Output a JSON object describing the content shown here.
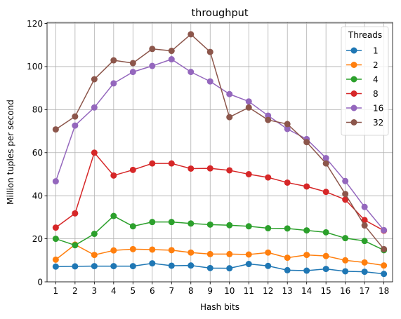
{
  "chart_data": {
    "type": "line",
    "title": "throughput",
    "xlabel": "Hash bits",
    "ylabel": "Million tuples per second",
    "x": [
      1,
      2,
      3,
      4,
      5,
      6,
      7,
      8,
      9,
      10,
      11,
      12,
      13,
      14,
      15,
      16,
      17,
      18
    ],
    "xlim": [
      0.55,
      18.45
    ],
    "ylim": [
      0,
      120.5
    ],
    "yticks": [
      0,
      20,
      40,
      60,
      80,
      100,
      120
    ],
    "grid": true,
    "marker": "circle",
    "legend": {
      "title": "Threads",
      "placement": "top-right"
    },
    "series": [
      {
        "name": "1",
        "color": "#1f77b4",
        "values": [
          7.1,
          7.2,
          7.3,
          7.3,
          7.3,
          8.6,
          7.5,
          7.6,
          6.4,
          6.3,
          8.3,
          7.4,
          5.4,
          5.2,
          6.0,
          4.9,
          4.7,
          3.7
        ]
      },
      {
        "name": "2",
        "color": "#ff7f0e",
        "values": [
          10.3,
          17.3,
          12.5,
          14.6,
          15.2,
          15.0,
          14.7,
          13.6,
          12.9,
          12.9,
          12.7,
          13.6,
          11.2,
          12.5,
          12.0,
          10.0,
          9.0,
          7.6
        ]
      },
      {
        "name": "4",
        "color": "#2ca02c",
        "values": [
          20.0,
          17.0,
          22.3,
          30.6,
          25.8,
          27.8,
          27.8,
          27.1,
          26.6,
          26.3,
          25.8,
          24.9,
          24.8,
          23.9,
          23.0,
          20.3,
          19.0,
          14.7
        ]
      },
      {
        "name": "8",
        "color": "#d62728",
        "values": [
          25.2,
          31.8,
          60.0,
          49.4,
          52.0,
          55.0,
          55.0,
          52.6,
          52.7,
          51.8,
          50.0,
          48.5,
          46.1,
          44.3,
          41.8,
          38.2,
          28.7,
          23.8
        ]
      },
      {
        "name": "16",
        "color": "#9467bd",
        "values": [
          46.7,
          72.6,
          81.0,
          92.2,
          97.5,
          100.3,
          103.4,
          97.5,
          93.1,
          87.2,
          83.8,
          77.2,
          71.0,
          66.3,
          57.5,
          46.8,
          34.8,
          24.0
        ]
      },
      {
        "name": "32",
        "color": "#8c564b",
        "values": [
          70.8,
          76.8,
          94.1,
          102.9,
          101.6,
          108.2,
          107.3,
          115.0,
          106.8,
          76.5,
          81.0,
          75.2,
          73.3,
          64.9,
          55.0,
          40.8,
          26.2,
          15.2
        ]
      }
    ]
  }
}
